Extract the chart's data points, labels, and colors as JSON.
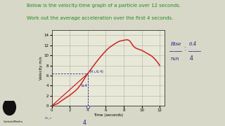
{
  "title_line1": "Below is the velocity-time graph of a particle over 12 seconds.",
  "title_line2": "Work out the average acceleration over the first 4 seconds.",
  "title_color": "#228B22",
  "ylabel": "Velocity m/s",
  "xlabel": "Time (seconds)",
  "xlim": [
    0,
    12.5
  ],
  "ylim": [
    0,
    15
  ],
  "xticks": [
    0,
    2,
    4,
    6,
    8,
    10,
    12
  ],
  "yticks": [
    0,
    2,
    4,
    6,
    8,
    10,
    12,
    14
  ],
  "bg_color": "#deded0",
  "plot_bg": "#e8e8d8",
  "grid_color": "#b0b0a0",
  "curve_color": "#cc2222",
  "annotation_color": "#1a1a8c",
  "dashed_color": "#1a1a8c",
  "logo_text": "CorbettMaths",
  "overall_bg": "#c8c8b8"
}
